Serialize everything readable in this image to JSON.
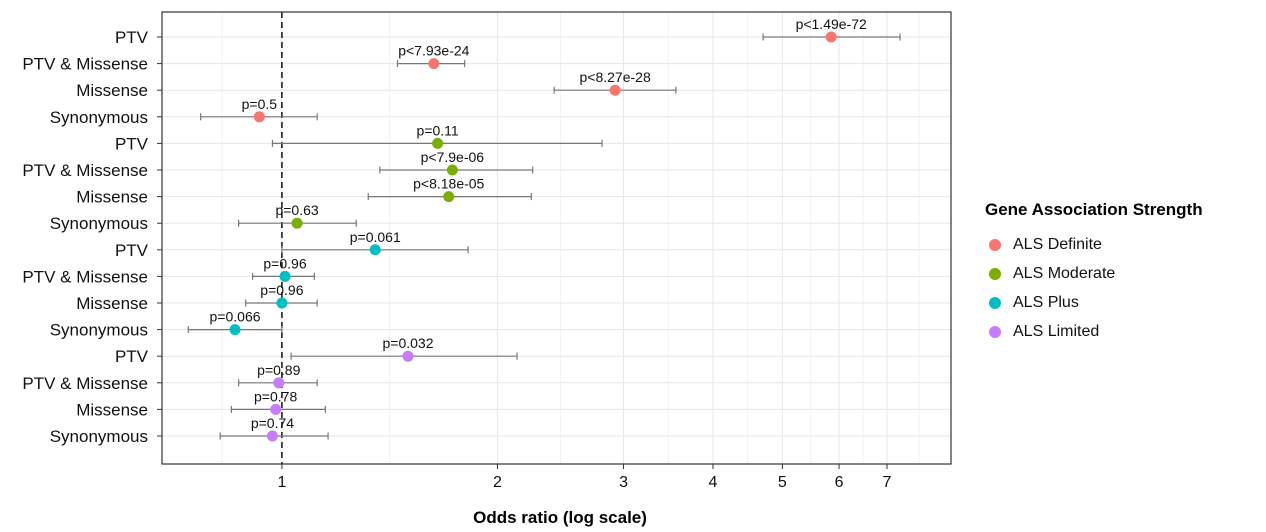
{
  "chart_data": {
    "type": "scatter",
    "title": "",
    "xlabel": "Odds ratio (log scale)",
    "ylabel": "",
    "x_scale": "log",
    "xlim": [
      0.68,
      8.6
    ],
    "x_ticks": [
      1,
      2,
      3,
      4,
      5,
      6,
      7
    ],
    "reference_line": 1,
    "legend_title": "Gene Association Strength",
    "legend_position": "right",
    "grid": true,
    "series": [
      {
        "name": "ALS Definite",
        "color": "#F8766D",
        "points": [
          {
            "label": "PTV",
            "or": 5.85,
            "lo": 4.7,
            "hi": 7.3,
            "p": "p<1.49e-72"
          },
          {
            "label": "PTV & Missense",
            "or": 1.63,
            "lo": 1.45,
            "hi": 1.8,
            "p": "p<7.93e-24"
          },
          {
            "label": "Missense",
            "or": 2.92,
            "lo": 2.4,
            "hi": 3.55,
            "p": "p<8.27e-28"
          },
          {
            "label": "Synonymous",
            "or": 0.93,
            "lo": 0.77,
            "hi": 1.12,
            "p": "p=0.5"
          }
        ]
      },
      {
        "name": "ALS Moderate",
        "color": "#7CAE00",
        "points": [
          {
            "label": "PTV",
            "or": 1.65,
            "lo": 0.97,
            "hi": 2.8,
            "p": "p=0.11"
          },
          {
            "label": "PTV & Missense",
            "or": 1.73,
            "lo": 1.37,
            "hi": 2.24,
            "p": "p<7.9e-06"
          },
          {
            "label": "Missense",
            "or": 1.71,
            "lo": 1.32,
            "hi": 2.23,
            "p": "p<8.18e-05"
          },
          {
            "label": "Synonymous",
            "or": 1.05,
            "lo": 0.87,
            "hi": 1.27,
            "p": "p=0.63"
          }
        ]
      },
      {
        "name": "ALS Plus",
        "color": "#00BFC4",
        "points": [
          {
            "label": "PTV",
            "or": 1.35,
            "lo": 1.0,
            "hi": 1.82,
            "p": "p=0.061"
          },
          {
            "label": "PTV & Missense",
            "or": 1.01,
            "lo": 0.91,
            "hi": 1.11,
            "p": "p=0.96"
          },
          {
            "label": "Missense",
            "or": 1.0,
            "lo": 0.89,
            "hi": 1.12,
            "p": "p=0.96"
          },
          {
            "label": "Synonymous",
            "or": 0.86,
            "lo": 0.74,
            "hi": 1.0,
            "p": "p=0.066"
          }
        ]
      },
      {
        "name": "ALS Limited",
        "color": "#C77CFF",
        "points": [
          {
            "label": "PTV",
            "or": 1.5,
            "lo": 1.03,
            "hi": 2.13,
            "p": "p=0.032"
          },
          {
            "label": "PTV & Missense",
            "or": 0.99,
            "lo": 0.87,
            "hi": 1.12,
            "p": "p=0.89"
          },
          {
            "label": "Missense",
            "or": 0.98,
            "lo": 0.85,
            "hi": 1.15,
            "p": "p=0.78"
          },
          {
            "label": "Synonymous",
            "or": 0.97,
            "lo": 0.82,
            "hi": 1.16,
            "p": "p=0.74"
          }
        ]
      }
    ]
  }
}
